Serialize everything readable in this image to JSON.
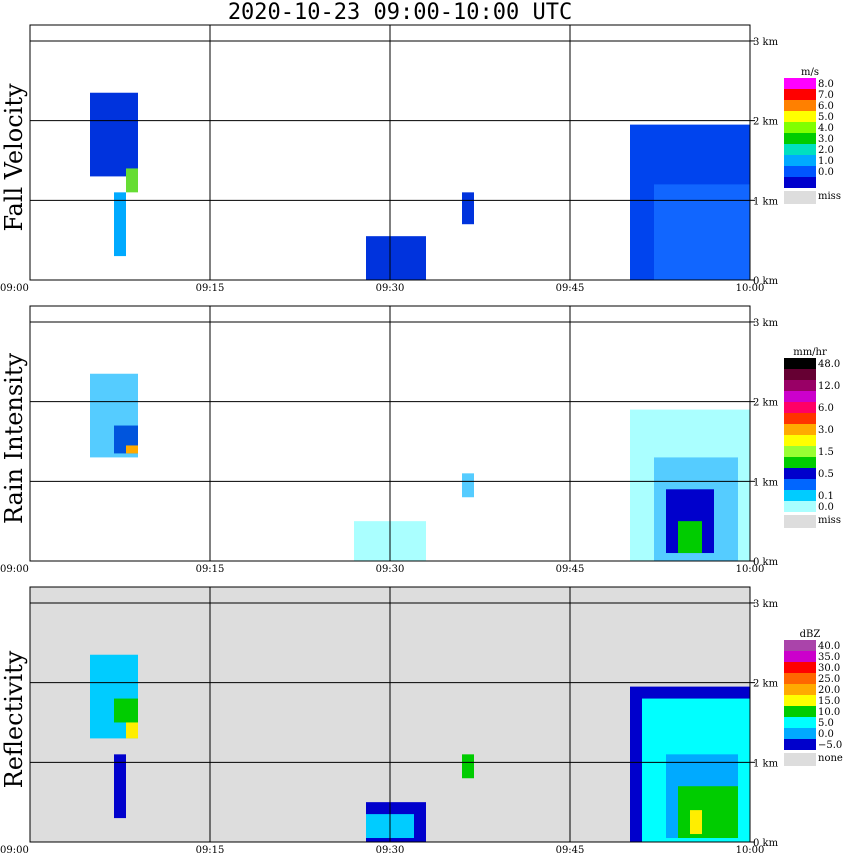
{
  "title": "2020-10-23   09:00-10:00 UTC",
  "x_ticks": [
    "09:00",
    "09:15",
    "09:30",
    "09:45",
    "10:00"
  ],
  "y_ticks": [
    "0 km",
    "1 km",
    "2 km",
    "3 km"
  ],
  "chart_data": [
    {
      "type": "heatmap",
      "ylabel": "Fall Velocity",
      "xlim": [
        "09:00",
        "10:00"
      ],
      "ylim": [
        0,
        3.2
      ],
      "grid": true,
      "legend": {
        "unit": "m/s",
        "bins": [
          {
            "label": "8.0",
            "color": "#ff00ff"
          },
          {
            "label": "7.0",
            "color": "#ff0000"
          },
          {
            "label": "6.0",
            "color": "#ff8000"
          },
          {
            "label": "5.0",
            "color": "#ffff00"
          },
          {
            "label": "4.0",
            "color": "#80ff00"
          },
          {
            "label": "3.0",
            "color": "#00cc00"
          },
          {
            "label": "2.0",
            "color": "#00e0c0"
          },
          {
            "label": "1.0",
            "color": "#00aaff"
          },
          {
            "label": "0.0",
            "color": "#0055ff"
          },
          {
            "label": "",
            "color": "#0000cc"
          }
        ],
        "missing": {
          "label": "miss",
          "color": "#dddddd"
        }
      },
      "background": "#ffffff",
      "echoes": [
        {
          "x0": "09:05",
          "x1": "09:09",
          "y0": 1.3,
          "y1": 2.35,
          "color": "#0033dd"
        },
        {
          "x0": "09:08",
          "x1": "09:09",
          "y0": 1.1,
          "y1": 1.4,
          "color": "#66dd33"
        },
        {
          "x0": "09:07",
          "x1": "09:08",
          "y0": 0.3,
          "y1": 1.1,
          "color": "#00aaff"
        },
        {
          "x0": "09:28",
          "x1": "09:33",
          "y0": 0.0,
          "y1": 0.55,
          "color": "#0033dd"
        },
        {
          "x0": "09:36",
          "x1": "09:37",
          "y0": 0.7,
          "y1": 1.1,
          "color": "#0033dd"
        },
        {
          "x0": "09:50",
          "x1": "10:00",
          "y0": 0.0,
          "y1": 1.95,
          "color": "#0044ee"
        },
        {
          "x0": "09:52",
          "x1": "10:00",
          "y0": 0.0,
          "y1": 1.2,
          "color": "#1166ff"
        }
      ]
    },
    {
      "type": "heatmap",
      "ylabel": "Rain Intensity",
      "xlim": [
        "09:00",
        "10:00"
      ],
      "ylim": [
        0,
        3.2
      ],
      "grid": true,
      "legend": {
        "unit": "mm/hr",
        "bins": [
          {
            "label": "48.0",
            "color": "#000000"
          },
          {
            "label": "",
            "color": "#660033"
          },
          {
            "label": "12.0",
            "color": "#990066"
          },
          {
            "label": "",
            "color": "#cc00cc"
          },
          {
            "label": "6.0",
            "color": "#ff0066"
          },
          {
            "label": "",
            "color": "#ff3300"
          },
          {
            "label": "3.0",
            "color": "#ffaa00"
          },
          {
            "label": "",
            "color": "#ffff00"
          },
          {
            "label": "1.5",
            "color": "#99ff33"
          },
          {
            "label": "",
            "color": "#00cc00"
          },
          {
            "label": "0.5",
            "color": "#0000cc"
          },
          {
            "label": "",
            "color": "#0066ff"
          },
          {
            "label": "0.1",
            "color": "#00ccff"
          },
          {
            "label": "0.0",
            "color": "#aaffff"
          }
        ],
        "missing": {
          "label": "miss",
          "color": "#dddddd"
        }
      },
      "background": "#ffffff",
      "echoes": [
        {
          "x0": "09:05",
          "x1": "09:09",
          "y0": 1.3,
          "y1": 2.35,
          "color": "#55ccff"
        },
        {
          "x0": "09:07",
          "x1": "09:09",
          "y0": 1.35,
          "y1": 1.7,
          "color": "#0055dd"
        },
        {
          "x0": "09:08",
          "x1": "09:09",
          "y0": 1.35,
          "y1": 1.45,
          "color": "#ffaa00"
        },
        {
          "x0": "09:27",
          "x1": "09:33",
          "y0": 0.0,
          "y1": 0.5,
          "color": "#aaffff"
        },
        {
          "x0": "09:36",
          "x1": "09:37",
          "y0": 0.8,
          "y1": 1.1,
          "color": "#55ccff"
        },
        {
          "x0": "09:50",
          "x1": "10:00",
          "y0": 0.0,
          "y1": 1.9,
          "color": "#aaffff"
        },
        {
          "x0": "09:52",
          "x1": "09:59",
          "y0": 0.0,
          "y1": 1.3,
          "color": "#55ccff"
        },
        {
          "x0": "09:53",
          "x1": "09:57",
          "y0": 0.1,
          "y1": 0.9,
          "color": "#0000cc"
        },
        {
          "x0": "09:54",
          "x1": "09:56",
          "y0": 0.1,
          "y1": 0.5,
          "color": "#00cc00"
        }
      ]
    },
    {
      "type": "heatmap",
      "ylabel": "Reflectivity",
      "xlim": [
        "09:00",
        "10:00"
      ],
      "ylim": [
        0,
        3.2
      ],
      "grid": true,
      "legend": {
        "unit": "dBZ",
        "bins": [
          {
            "label": "40.0",
            "color": "#aa44aa"
          },
          {
            "label": "35.0",
            "color": "#cc00cc"
          },
          {
            "label": "30.0",
            "color": "#ff0000"
          },
          {
            "label": "25.0",
            "color": "#ff6600"
          },
          {
            "label": "20.0",
            "color": "#ffaa00"
          },
          {
            "label": "15.0",
            "color": "#ffff00"
          },
          {
            "label": "10.0",
            "color": "#00cc00"
          },
          {
            "label": "5.0",
            "color": "#00ffff"
          },
          {
            "label": "0.0",
            "color": "#00aaff"
          },
          {
            "label": "−5.0",
            "color": "#0000cc"
          }
        ],
        "missing": {
          "label": "none",
          "color": "#dddddd"
        }
      },
      "background": "#dddddd",
      "echoes": [
        {
          "x0": "09:05",
          "x1": "09:09",
          "y0": 1.3,
          "y1": 2.35,
          "color": "#00ccff"
        },
        {
          "x0": "09:07",
          "x1": "09:09",
          "y0": 1.5,
          "y1": 1.8,
          "color": "#00cc00"
        },
        {
          "x0": "09:08",
          "x1": "09:09",
          "y0": 1.3,
          "y1": 1.5,
          "color": "#ffee00"
        },
        {
          "x0": "09:07",
          "x1": "09:08",
          "y0": 0.3,
          "y1": 1.1,
          "color": "#0000cc"
        },
        {
          "x0": "09:28",
          "x1": "09:33",
          "y0": 0.0,
          "y1": 0.5,
          "color": "#0000cc"
        },
        {
          "x0": "09:28",
          "x1": "09:32",
          "y0": 0.05,
          "y1": 0.35,
          "color": "#00ccff"
        },
        {
          "x0": "09:36",
          "x1": "09:37",
          "y0": 0.8,
          "y1": 1.1,
          "color": "#00cc00"
        },
        {
          "x0": "09:50",
          "x1": "10:00",
          "y0": 0.0,
          "y1": 1.95,
          "color": "#0000cc"
        },
        {
          "x0": "09:51",
          "x1": "10:00",
          "y0": 0.0,
          "y1": 1.8,
          "color": "#00ffff"
        },
        {
          "x0": "09:53",
          "x1": "09:59",
          "y0": 0.05,
          "y1": 1.1,
          "color": "#00aaff"
        },
        {
          "x0": "09:54",
          "x1": "09:59",
          "y0": 0.05,
          "y1": 0.7,
          "color": "#00cc00"
        },
        {
          "x0": "09:55",
          "x1": "09:56",
          "y0": 0.1,
          "y1": 0.4,
          "color": "#ffee00"
        }
      ]
    }
  ]
}
